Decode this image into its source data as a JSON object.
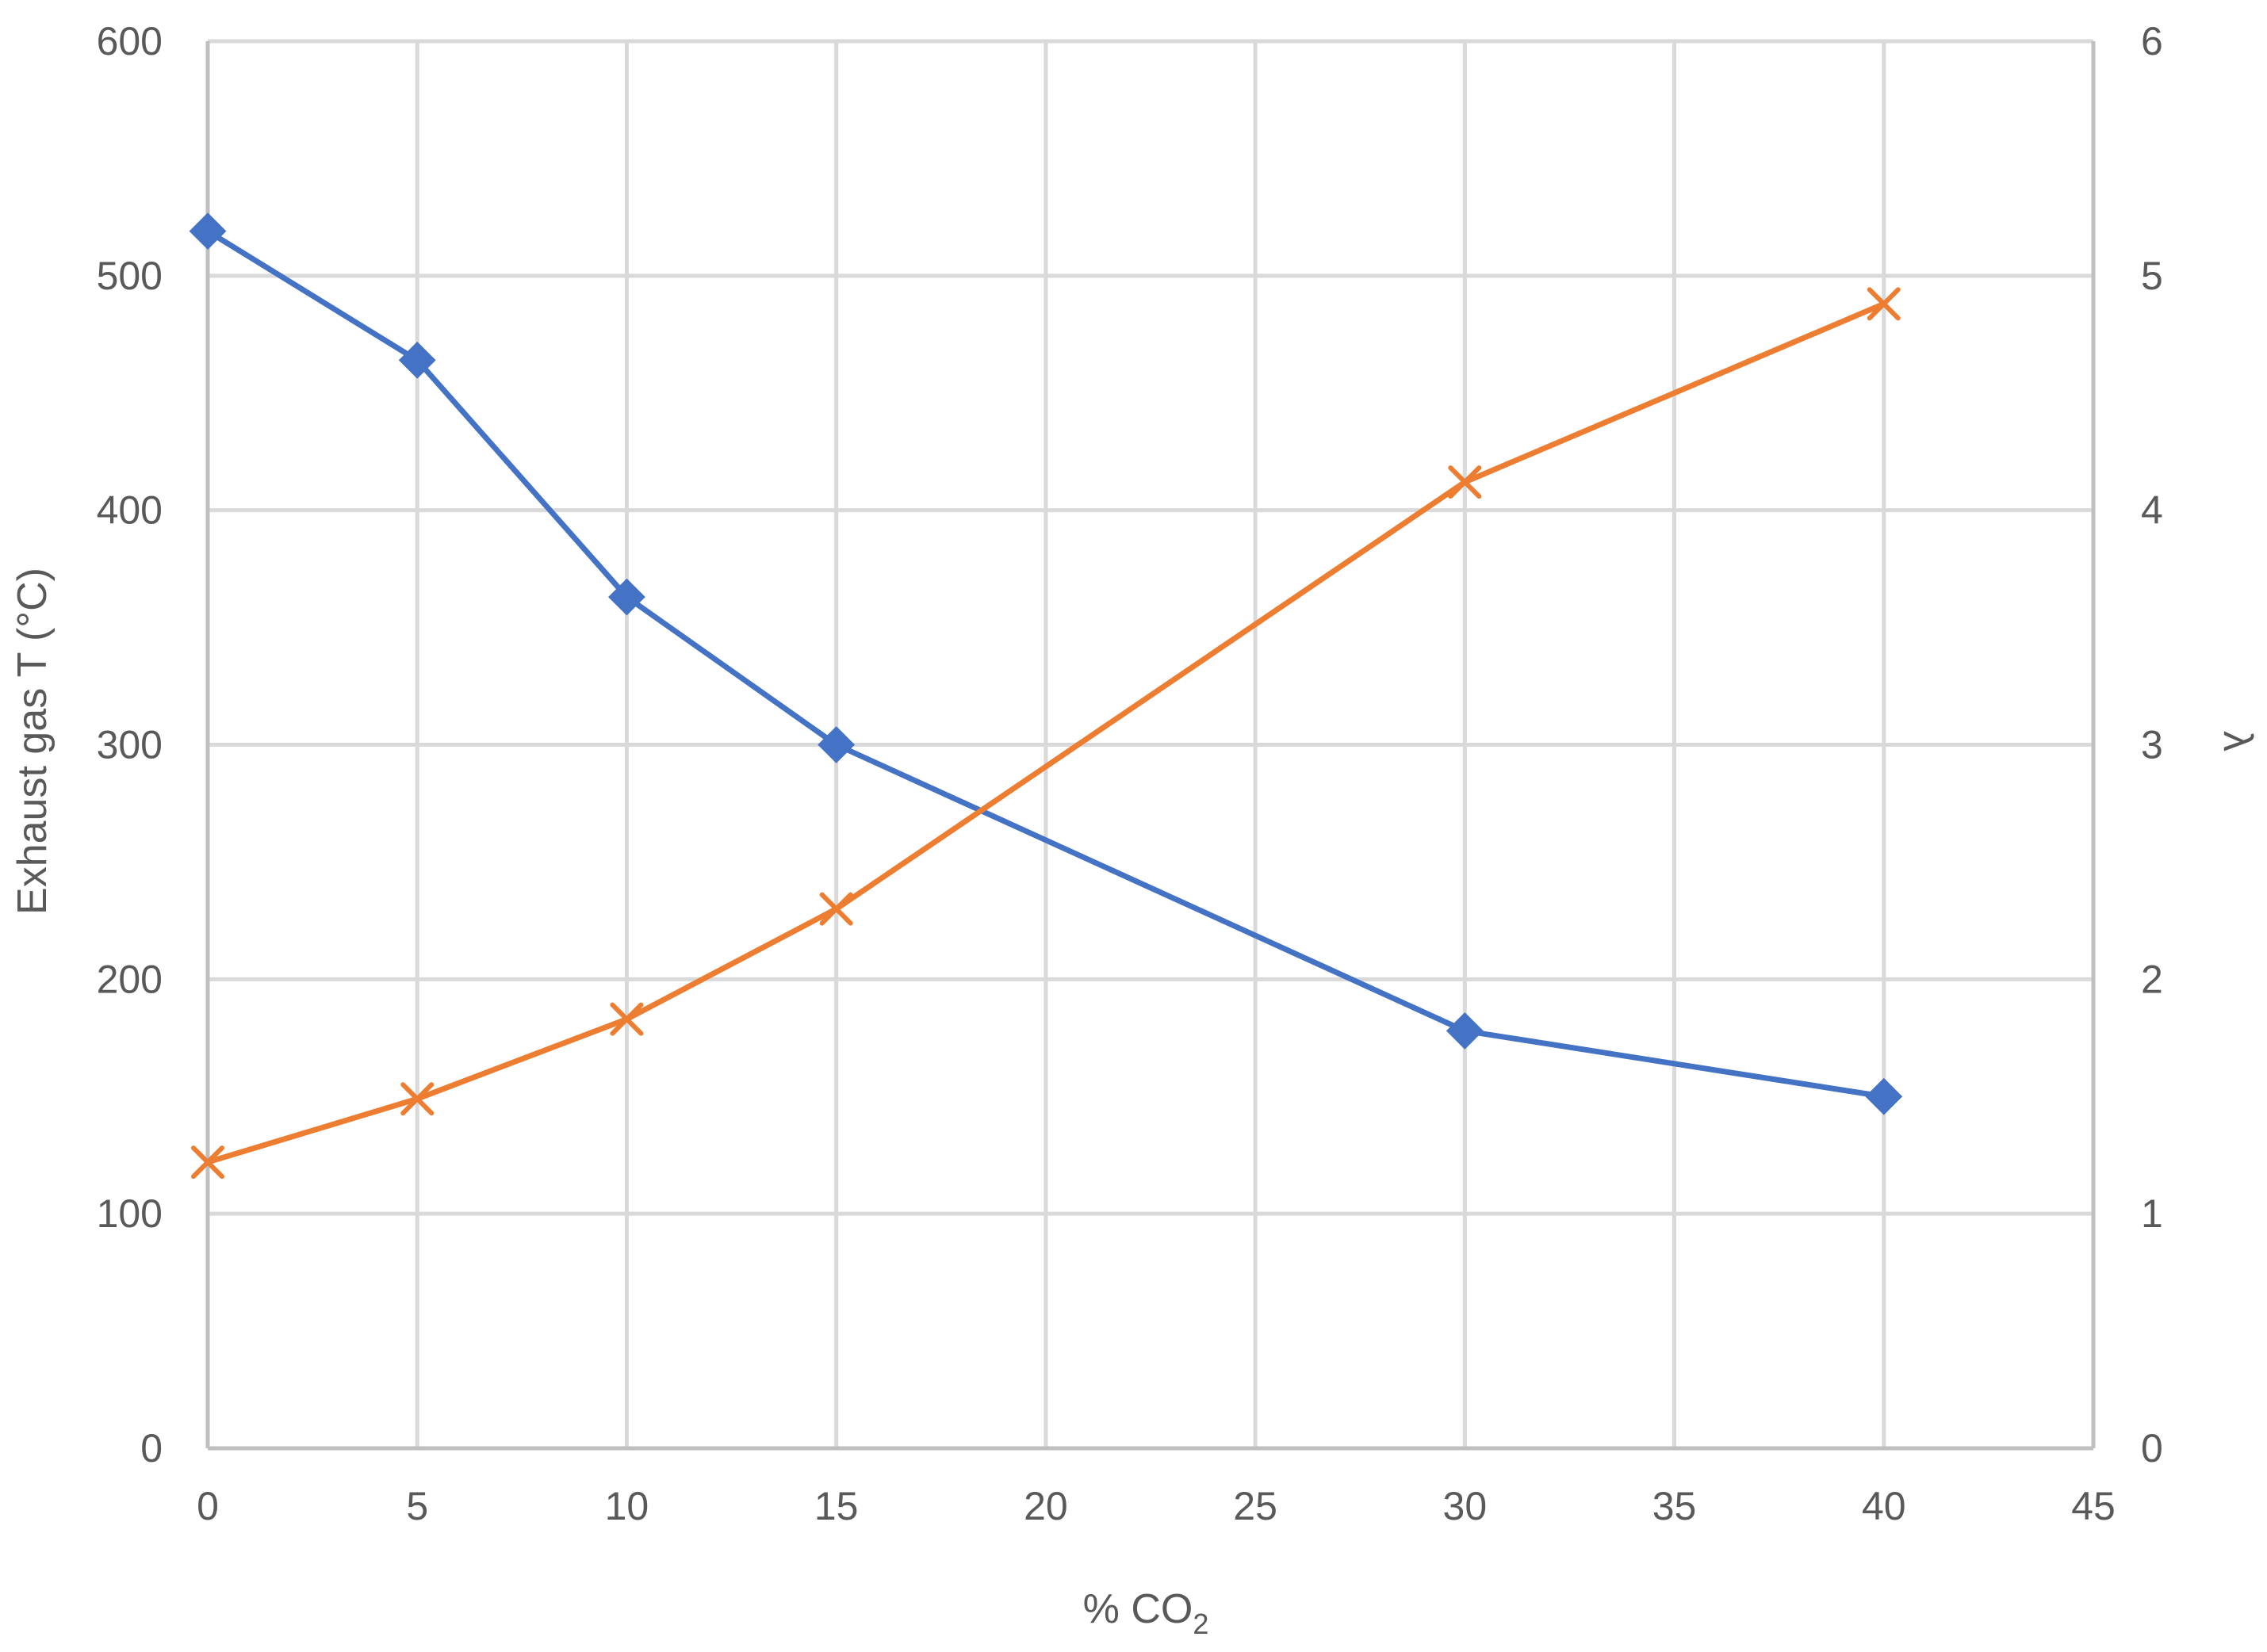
{
  "chart_data": {
    "type": "line",
    "title": "",
    "xlabel": "% CO",
    "xlabel_subscript": "2",
    "ylabel_left": "Exhaust gas T (°C)",
    "ylabel_right": "λ",
    "xlim": [
      0,
      45
    ],
    "ylim_left": [
      0,
      600
    ],
    "ylim_right": [
      0,
      6
    ],
    "x_ticks": [
      0,
      5,
      10,
      15,
      20,
      25,
      30,
      35,
      40,
      45
    ],
    "y_left_ticks": [
      0,
      100,
      200,
      300,
      400,
      500,
      600
    ],
    "y_right_ticks": [
      0,
      1,
      2,
      3,
      4,
      5,
      6
    ],
    "grid": true,
    "series": [
      {
        "name": "Exhaust gas T",
        "axis": "left",
        "color": "#4472C4",
        "marker": "diamond",
        "x": [
          0,
          5,
          10,
          15,
          30,
          40
        ],
        "values": [
          519,
          464,
          363,
          300,
          178,
          150
        ]
      },
      {
        "name": "λ",
        "axis": "right",
        "color": "#ED7D31",
        "marker": "x",
        "x": [
          0,
          5,
          10,
          15,
          30,
          40
        ],
        "values": [
          1.22,
          1.49,
          1.83,
          2.3,
          4.12,
          4.88
        ]
      }
    ]
  }
}
